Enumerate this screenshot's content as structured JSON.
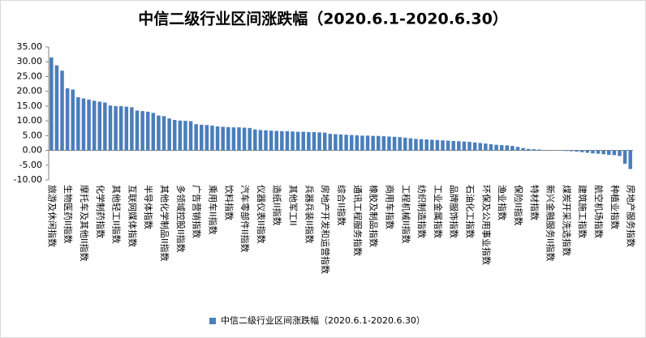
{
  "chart_data": {
    "type": "bar",
    "title": "中信二级行业区间涨跌幅（2020.6.1-2020.6.30）",
    "categories": [
      "旅游及休闲指数",
      null,
      null,
      "生物医药II指数",
      null,
      null,
      "摩托车及其他II指数",
      null,
      null,
      "化学制药指数",
      null,
      null,
      "其他轻工II指数",
      null,
      null,
      "互联网媒体指数",
      null,
      null,
      "半导体指数",
      null,
      null,
      "其他化学制品II指数",
      null,
      null,
      "多领域控股II指数",
      null,
      null,
      "广告营销指数",
      null,
      null,
      "乘用车II指数",
      null,
      null,
      "饮料指数",
      null,
      null,
      "汽车零部件II指数",
      null,
      null,
      "仪器仪表II指数",
      null,
      null,
      "造纸II指数",
      null,
      null,
      "其他军工II",
      null,
      null,
      "兵器兵装II指数",
      null,
      null,
      "房地产开发和运营指数",
      null,
      null,
      "综合II指数",
      null,
      null,
      "通讯工程服务指数",
      null,
      null,
      "橡胶及制品指数",
      null,
      null,
      "商用车指数",
      null,
      null,
      "工程机械II指数",
      null,
      null,
      "纺织制造指数",
      null,
      null,
      "工业金属指数",
      null,
      null,
      "品牌服饰指数",
      null,
      null,
      "石油化工指数",
      null,
      null,
      "环保及公用事业指数",
      null,
      null,
      "渔业指数",
      null,
      null,
      "保险II指数",
      null,
      null,
      "特材指数",
      null,
      null,
      "新兴金融服务II指数",
      null,
      null,
      "煤炭开采洗选指数",
      null,
      null,
      "建筑施工指数",
      null,
      null,
      "航空机场指数",
      null,
      null,
      "种植业指数",
      null,
      null,
      "房地产服务指数"
    ],
    "series": [
      {
        "name": "中信二级行业区间涨跌幅（2020.6.1-2020.6.30）",
        "color": "#4a7ebb",
        "values": [
          31.5,
          28.8,
          27.0,
          21.0,
          20.6,
          18.0,
          17.6,
          17.2,
          16.8,
          16.5,
          16.2,
          15.2,
          15.0,
          15.0,
          14.8,
          14.6,
          13.5,
          13.3,
          13.1,
          12.7,
          11.8,
          11.6,
          10.8,
          10.3,
          10.1,
          10.0,
          9.9,
          8.9,
          8.7,
          8.6,
          8.4,
          8.1,
          8.0,
          7.9,
          7.8,
          7.8,
          7.7,
          7.6,
          7.1,
          6.9,
          6.8,
          6.7,
          6.6,
          6.5,
          6.5,
          6.4,
          6.3,
          6.3,
          6.2,
          6.2,
          6.1,
          6.0,
          5.6,
          5.5,
          5.4,
          5.3,
          5.2,
          5.1,
          5.0,
          5.0,
          4.9,
          4.9,
          4.8,
          4.7,
          4.6,
          4.5,
          4.3,
          4.1,
          3.9,
          3.8,
          3.7,
          3.6,
          3.5,
          3.4,
          3.3,
          3.2,
          3.1,
          3.0,
          2.9,
          2.7,
          2.5,
          2.3,
          2.1,
          1.9,
          1.8,
          1.7,
          1.5,
          1.2,
          0.8,
          0.5,
          0.4,
          0.3,
          0.1,
          0.1,
          0.0,
          -0.1,
          -0.2,
          -0.3,
          -0.4,
          -0.6,
          -0.8,
          -1.0,
          -1.1,
          -1.3,
          -1.5,
          -1.6,
          -1.9,
          -4.5,
          -6.3
        ]
      }
    ],
    "ylim": [
      -10,
      35
    ],
    "yticks": [
      {
        "value": -10,
        "label": "-10.00"
      },
      {
        "value": -5,
        "label": "-5.00"
      },
      {
        "value": 0,
        "label": "0.00"
      },
      {
        "value": 5,
        "label": "5.00"
      },
      {
        "value": 10,
        "label": "10.00"
      },
      {
        "value": 15,
        "label": "15.00"
      },
      {
        "value": 20,
        "label": "20.00"
      },
      {
        "value": 25,
        "label": "25.00"
      },
      {
        "value": 30,
        "label": "30.00"
      },
      {
        "value": 35,
        "label": "35.00"
      }
    ],
    "legend": "bottom"
  }
}
